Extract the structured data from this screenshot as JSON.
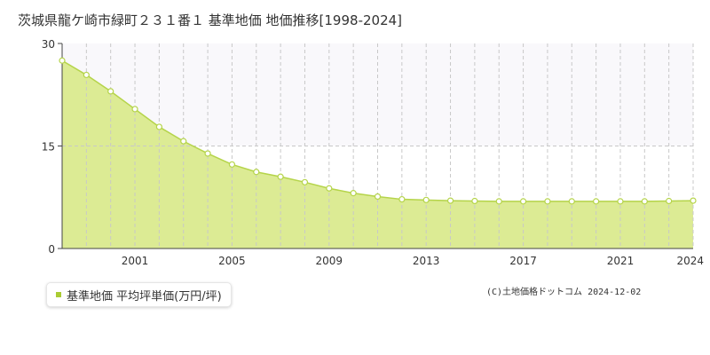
{
  "title": "茨城県龍ケ崎市緑町２３１番１ 基準地価 地価推移[1998-2024]",
  "legend_label": "基準地価 平均坪単価(万円/坪)",
  "copyright": "(C)土地価格ドットコム 2024-12-02",
  "colors": {
    "area_fill": "#dceb94",
    "line": "#b5d44a",
    "upper_band": "#f9f8fb",
    "marker": "#aacc33"
  },
  "chart_data": {
    "type": "area",
    "title": "茨城県龍ケ崎市緑町２３１番１ 基準地価 地価推移[1998-2024]",
    "xlabel": "",
    "ylabel": "",
    "ylim": [
      0,
      30
    ],
    "xlim": [
      1998,
      2024
    ],
    "y_ticks": [
      "0",
      "15",
      "30"
    ],
    "x_ticks": [
      "2001",
      "2005",
      "2009",
      "2013",
      "2017",
      "2021",
      "2024"
    ],
    "grid": true,
    "legend_position": "bottom-left",
    "series": [
      {
        "name": "基準地価 平均坪単価(万円/坪)",
        "x": [
          1998,
          1999,
          2000,
          2001,
          2002,
          2003,
          2004,
          2005,
          2006,
          2007,
          2008,
          2009,
          2010,
          2011,
          2012,
          2013,
          2014,
          2015,
          2016,
          2017,
          2018,
          2019,
          2020,
          2021,
          2022,
          2023,
          2024
        ],
        "values": [
          27.5,
          25.4,
          23.0,
          20.4,
          17.8,
          15.7,
          13.9,
          12.3,
          11.2,
          10.5,
          9.7,
          8.8,
          8.1,
          7.6,
          7.2,
          7.1,
          7.0,
          6.95,
          6.9,
          6.9,
          6.9,
          6.9,
          6.9,
          6.9,
          6.9,
          6.95,
          7.0
        ]
      }
    ]
  }
}
